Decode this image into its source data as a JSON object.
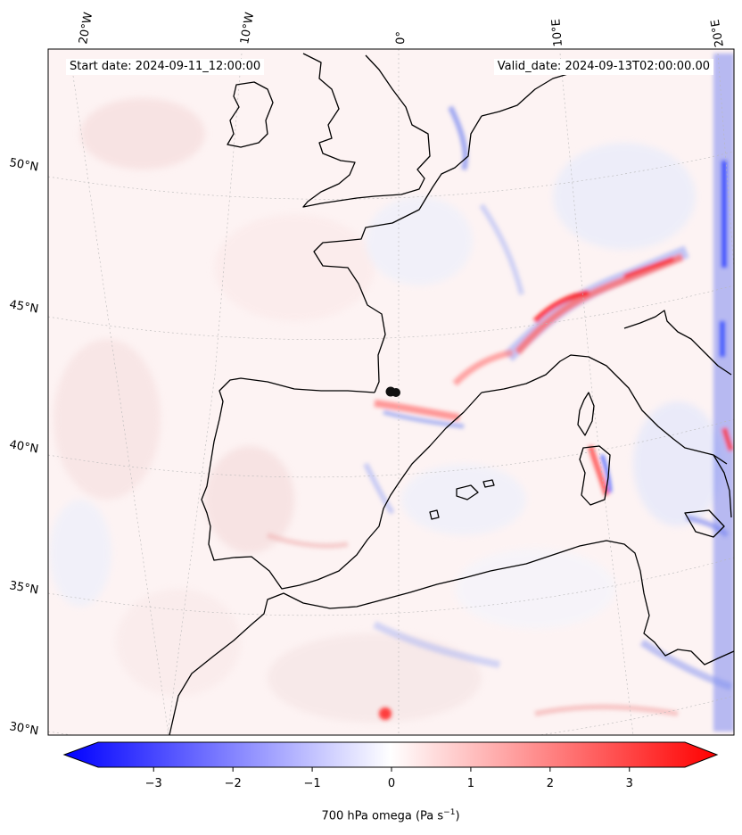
{
  "header": {
    "start_date": "Start date: 2024-09-11_12:00:00",
    "valid_date": "Valid_date: 2024-09-13T02:00:00.00"
  },
  "map": {
    "lon_labels": [
      "20°W",
      "10°W",
      "0°",
      "10°E",
      "20°E"
    ],
    "lat_labels": [
      "50°N",
      "45°N",
      "40°N",
      "35°N",
      "30°N"
    ],
    "gridlines": true,
    "coastline_color": "#000000"
  },
  "colorbar": {
    "variable": "700 hPa omega",
    "unit_text": "(Pa s",
    "unit_exponent": "−1",
    "unit_close": ")",
    "tick_labels": [
      "−3",
      "−2",
      "−1",
      "0",
      "1",
      "2",
      "3"
    ],
    "vmin": -3.7,
    "vmax": 3.7,
    "extend": "both",
    "colormap": "bwr",
    "min_color": "#0000ff",
    "mid_color": "#ffffff",
    "max_color": "#ff0000"
  }
}
